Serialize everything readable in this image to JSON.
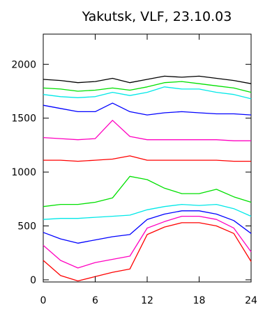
{
  "chart_data": {
    "type": "line",
    "title": "Yakutsk, VLF, 23.10.03",
    "xlabel": "",
    "ylabel": "",
    "xlim": [
      0,
      24
    ],
    "ylim": [
      -20,
      2280
    ],
    "x_ticks": [
      0,
      6,
      12,
      18,
      24
    ],
    "x_tick_labels": [
      "0",
      "6",
      "12",
      "18",
      "24"
    ],
    "y_ticks": [
      0,
      500,
      1000,
      1500,
      2000
    ],
    "y_tick_labels": [
      "0",
      "500",
      "1000",
      "1500",
      "2000"
    ],
    "grid": false,
    "legend": "none",
    "series": [
      {
        "color": "#000000",
        "x": [
          0,
          2,
          4,
          6,
          8,
          10,
          12,
          14,
          16,
          18,
          20,
          22,
          24
        ],
        "y": [
          1860,
          1850,
          1830,
          1840,
          1870,
          1830,
          1860,
          1890,
          1880,
          1890,
          1870,
          1850,
          1820
        ]
      },
      {
        "color": "#00e000",
        "x": [
          0,
          2,
          4,
          6,
          8,
          10,
          12,
          14,
          16,
          18,
          20,
          22,
          24
        ],
        "y": [
          1780,
          1770,
          1750,
          1760,
          1780,
          1760,
          1790,
          1830,
          1840,
          1820,
          1800,
          1780,
          1740
        ]
      },
      {
        "color": "#00e8e8",
        "x": [
          0,
          2,
          4,
          6,
          8,
          10,
          12,
          14,
          16,
          18,
          20,
          22,
          24
        ],
        "y": [
          1720,
          1700,
          1690,
          1700,
          1740,
          1710,
          1740,
          1790,
          1770,
          1770,
          1740,
          1720,
          1680
        ]
      },
      {
        "color": "#0000ff",
        "x": [
          0,
          2,
          4,
          6,
          8,
          10,
          12,
          14,
          16,
          18,
          20,
          22,
          24
        ],
        "y": [
          1620,
          1590,
          1560,
          1560,
          1640,
          1560,
          1530,
          1550,
          1560,
          1550,
          1540,
          1540,
          1530
        ]
      },
      {
        "color": "#ff00c0",
        "x": [
          0,
          2,
          4,
          6,
          8,
          10,
          12,
          14,
          16,
          18,
          20,
          22,
          24
        ],
        "y": [
          1320,
          1310,
          1300,
          1310,
          1480,
          1330,
          1300,
          1300,
          1300,
          1300,
          1300,
          1290,
          1290
        ]
      },
      {
        "color": "#ff0000",
        "x": [
          0,
          2,
          4,
          6,
          8,
          10,
          12,
          14,
          16,
          18,
          20,
          22,
          24
        ],
        "y": [
          1110,
          1110,
          1100,
          1110,
          1120,
          1150,
          1110,
          1110,
          1110,
          1110,
          1110,
          1100,
          1100
        ]
      },
      {
        "color": "#00e000",
        "x": [
          0,
          2,
          4,
          6,
          8,
          10,
          12,
          14,
          16,
          18,
          20,
          22,
          24
        ],
        "y": [
          680,
          700,
          700,
          720,
          760,
          960,
          930,
          850,
          800,
          800,
          840,
          770,
          720
        ]
      },
      {
        "color": "#00e8e8",
        "x": [
          0,
          2,
          4,
          6,
          8,
          10,
          12,
          14,
          16,
          18,
          20,
          22,
          24
        ],
        "y": [
          560,
          570,
          570,
          580,
          590,
          600,
          650,
          680,
          700,
          690,
          700,
          660,
          590
        ]
      },
      {
        "color": "#0000ff",
        "x": [
          0,
          2,
          4,
          6,
          8,
          10,
          12,
          14,
          16,
          18,
          20,
          22,
          24
        ],
        "y": [
          440,
          380,
          340,
          370,
          400,
          420,
          560,
          610,
          640,
          640,
          610,
          550,
          430
        ]
      },
      {
        "color": "#ff00c0",
        "x": [
          0,
          2,
          4,
          6,
          8,
          10,
          12,
          14,
          16,
          18,
          20,
          22,
          24
        ],
        "y": [
          320,
          180,
          110,
          160,
          190,
          220,
          480,
          540,
          590,
          590,
          560,
          480,
          260
        ]
      },
      {
        "color": "#ff0000",
        "x": [
          0,
          2,
          4,
          6,
          8,
          10,
          12,
          14,
          16,
          18,
          20,
          22,
          24
        ],
        "y": [
          180,
          40,
          -10,
          30,
          70,
          100,
          420,
          490,
          530,
          530,
          500,
          430,
          170
        ]
      }
    ]
  }
}
